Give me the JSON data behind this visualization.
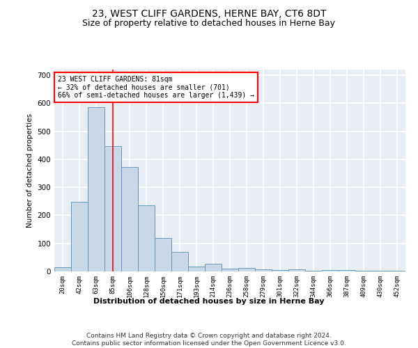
{
  "title": "23, WEST CLIFF GARDENS, HERNE BAY, CT6 8DT",
  "subtitle": "Size of property relative to detached houses in Herne Bay",
  "xlabel": "Distribution of detached houses by size in Herne Bay",
  "ylabel": "Number of detached properties",
  "bar_color": "#c8d8e8",
  "bar_edge_color": "#6699bb",
  "vline_x": 3,
  "vline_color": "red",
  "annotation_text": "23 WEST CLIFF GARDENS: 81sqm\n← 32% of detached houses are smaller (701)\n66% of semi-detached houses are larger (1,439) →",
  "annotation_box_color": "white",
  "annotation_box_edge": "red",
  "footer": "Contains HM Land Registry data © Crown copyright and database right 2024.\nContains public sector information licensed under the Open Government Licence v3.0.",
  "categories": [
    "20sqm",
    "42sqm",
    "63sqm",
    "85sqm",
    "106sqm",
    "128sqm",
    "150sqm",
    "171sqm",
    "193sqm",
    "214sqm",
    "236sqm",
    "258sqm",
    "279sqm",
    "301sqm",
    "322sqm",
    "344sqm",
    "366sqm",
    "387sqm",
    "409sqm",
    "430sqm",
    "452sqm"
  ],
  "values": [
    15,
    248,
    585,
    448,
    372,
    235,
    118,
    70,
    18,
    28,
    10,
    12,
    8,
    5,
    8,
    3,
    5,
    5,
    3,
    2,
    2
  ],
  "ylim": [
    0,
    720
  ],
  "yticks": [
    0,
    100,
    200,
    300,
    400,
    500,
    600,
    700
  ],
  "background_color": "#e8eef4",
  "grid_color": "#ffffff",
  "title_fontsize": 10,
  "subtitle_fontsize": 9,
  "footer_fontsize": 6.5
}
